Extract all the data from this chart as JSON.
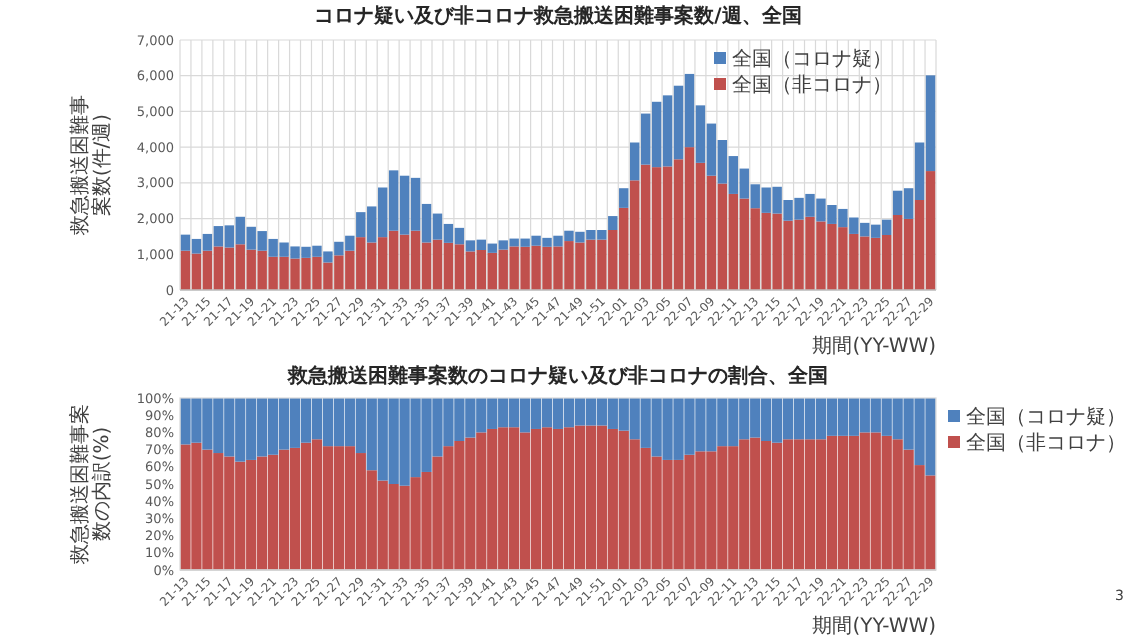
{
  "chart_data": [
    {
      "type": "bar",
      "title": "コロナ疑い及び非コロナ救急搬送困難事案数/週、全国",
      "xlabel": "期間(YY-WW)",
      "ylabel": "救急搬送困難事案数(件/週)",
      "stacked": true,
      "grid": true,
      "legend": "top right",
      "ylim": [
        0,
        7000
      ],
      "yticks": [
        {
          "value": 0,
          "label": "0"
        },
        {
          "value": 1000,
          "label": "1,000"
        },
        {
          "value": 2000,
          "label": "2,000"
        },
        {
          "value": 3000,
          "label": "3,000"
        },
        {
          "value": 4000,
          "label": "4,000"
        },
        {
          "value": 5000,
          "label": "5,000"
        },
        {
          "value": 6000,
          "label": "6,000"
        },
        {
          "value": 7000,
          "label": "7,000"
        }
      ],
      "categories": [
        "21-13",
        null,
        "21-15",
        null,
        "21-17",
        null,
        "21-19",
        null,
        "21-21",
        null,
        "21-23",
        null,
        "21-25",
        null,
        "21-27",
        null,
        "21-29",
        null,
        "21-31",
        null,
        "21-33",
        null,
        "21-35",
        null,
        "21-37",
        null,
        "21-39",
        null,
        "21-41",
        null,
        "21-43",
        null,
        "21-45",
        null,
        "21-47",
        null,
        "21-49",
        null,
        "21-51",
        null,
        "22-01",
        null,
        "22-03",
        null,
        "22-05",
        null,
        "22-07",
        null,
        "22-09",
        null,
        "22-11",
        null,
        "22-13",
        null,
        "22-15",
        null,
        "22-17",
        null,
        "22-19",
        null,
        "22-21",
        null,
        "22-23",
        null,
        "22-25",
        null,
        "22-27",
        null,
        "22-29"
      ],
      "series": [
        {
          "name": "全国（非コロナ）",
          "color": "#c0504d",
          "values": [
            1100,
            1020,
            1100,
            1220,
            1190,
            1280,
            1130,
            1100,
            930,
            930,
            880,
            900,
            930,
            770,
            970,
            1100,
            1480,
            1330,
            1480,
            1660,
            1550,
            1660,
            1330,
            1410,
            1320,
            1280,
            1080,
            1120,
            1040,
            1130,
            1220,
            1210,
            1240,
            1210,
            1220,
            1370,
            1330,
            1410,
            1410,
            1680,
            2300,
            3070,
            3510,
            3440,
            3460,
            3660,
            4000,
            3560,
            3200,
            2980,
            2690,
            2560,
            2290,
            2160,
            2140,
            1940,
            1970,
            2050,
            1920,
            1850,
            1760,
            1570,
            1500,
            1460,
            1540,
            2100,
            1990,
            2520,
            3330
          ]
        },
        {
          "name": "全国（コロナ疑）",
          "color": "#4f81bd",
          "values": [
            450,
            410,
            470,
            570,
            620,
            770,
            640,
            550,
            500,
            400,
            340,
            310,
            310,
            310,
            380,
            420,
            700,
            1010,
            1390,
            1690,
            1650,
            1480,
            1080,
            730,
            530,
            460,
            310,
            290,
            260,
            260,
            220,
            230,
            280,
            250,
            300,
            290,
            300,
            270,
            270,
            390,
            550,
            1060,
            1430,
            1830,
            1990,
            2060,
            2050,
            1610,
            1460,
            1220,
            1060,
            840,
            670,
            710,
            750,
            580,
            610,
            640,
            640,
            530,
            510,
            460,
            380,
            370,
            430,
            680,
            860,
            1610,
            2680
          ]
        }
      ]
    },
    {
      "type": "bar",
      "title": "救急搬送困難事案数のコロナ疑い及び非コロナの割合、全国",
      "xlabel": "期間(YY-WW)",
      "ylabel": "救急搬送困難事案数の内訳(%)",
      "stacked": true,
      "legend": "right",
      "ylim": [
        0,
        100
      ],
      "yticks": [
        {
          "value": 0,
          "label": "0%"
        },
        {
          "value": 10,
          "label": "10%"
        },
        {
          "value": 20,
          "label": "20%"
        },
        {
          "value": 30,
          "label": "30%"
        },
        {
          "value": 40,
          "label": "40%"
        },
        {
          "value": 50,
          "label": "50%"
        },
        {
          "value": 60,
          "label": "60%"
        },
        {
          "value": 70,
          "label": "70%"
        },
        {
          "value": 80,
          "label": "80%"
        },
        {
          "value": 90,
          "label": "90%"
        },
        {
          "value": 100,
          "label": "100%"
        }
      ],
      "categories": [
        "21-13",
        null,
        "21-15",
        null,
        "21-17",
        null,
        "21-19",
        null,
        "21-21",
        null,
        "21-23",
        null,
        "21-25",
        null,
        "21-27",
        null,
        "21-29",
        null,
        "21-31",
        null,
        "21-33",
        null,
        "21-35",
        null,
        "21-37",
        null,
        "21-39",
        null,
        "21-41",
        null,
        "21-43",
        null,
        "21-45",
        null,
        "21-47",
        null,
        "21-49",
        null,
        "21-51",
        null,
        "22-01",
        null,
        "22-03",
        null,
        "22-05",
        null,
        "22-07",
        null,
        "22-09",
        null,
        "22-11",
        null,
        "22-13",
        null,
        "22-15",
        null,
        "22-17",
        null,
        "22-19",
        null,
        "22-21",
        null,
        "22-23",
        null,
        "22-25",
        null,
        "22-27",
        null,
        "22-29"
      ],
      "series": [
        {
          "name": "全国（非コロナ）",
          "color": "#c0504d",
          "values": [
            73,
            74,
            70,
            68,
            66,
            63,
            64,
            66,
            67,
            70,
            71,
            74,
            76,
            72,
            72,
            72,
            68,
            58,
            52,
            50,
            49,
            54,
            57,
            66,
            72,
            75,
            77,
            80,
            82,
            83,
            83,
            80,
            82,
            83,
            82,
            83,
            84,
            84,
            84,
            82,
            81,
            76,
            71,
            66,
            64,
            64,
            67,
            69,
            69,
            72,
            72,
            76,
            77,
            75,
            74,
            76,
            76,
            76,
            76,
            78,
            78,
            78,
            80,
            80,
            78,
            76,
            70,
            61,
            55
          ]
        },
        {
          "name": "全国（コロナ疑）",
          "color": "#4f81bd",
          "values": [
            27,
            26,
            30,
            32,
            34,
            37,
            36,
            34,
            33,
            30,
            29,
            26,
            24,
            28,
            28,
            28,
            32,
            42,
            48,
            50,
            51,
            46,
            43,
            34,
            28,
            25,
            23,
            20,
            18,
            17,
            17,
            20,
            18,
            17,
            18,
            17,
            16,
            16,
            16,
            18,
            19,
            24,
            29,
            34,
            36,
            36,
            33,
            31,
            31,
            28,
            28,
            24,
            23,
            25,
            26,
            24,
            24,
            24,
            24,
            22,
            22,
            22,
            20,
            20,
            22,
            24,
            30,
            39,
            45
          ]
        }
      ],
      "annotations": [
        "3"
      ]
    }
  ]
}
